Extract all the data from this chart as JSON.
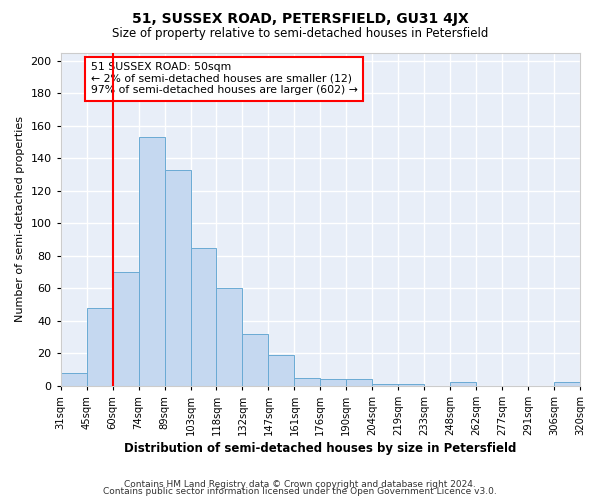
{
  "title1": "51, SUSSEX ROAD, PETERSFIELD, GU31 4JX",
  "title2": "Size of property relative to semi-detached houses in Petersfield",
  "xlabel": "Distribution of semi-detached houses by size in Petersfield",
  "ylabel": "Number of semi-detached properties",
  "bin_labels": [
    "31sqm",
    "45sqm",
    "60sqm",
    "74sqm",
    "89sqm",
    "103sqm",
    "118sqm",
    "132sqm",
    "147sqm",
    "161sqm",
    "176sqm",
    "190sqm",
    "204sqm",
    "219sqm",
    "233sqm",
    "248sqm",
    "262sqm",
    "277sqm",
    "291sqm",
    "306sqm",
    "320sqm"
  ],
  "bar_values": [
    8,
    48,
    70,
    153,
    133,
    85,
    60,
    32,
    19,
    5,
    4,
    4,
    1,
    1,
    0,
    2,
    0,
    0,
    0,
    2
  ],
  "bar_color": "#c5d8f0",
  "bar_edge_color": "#6aaad4",
  "red_line_x": 1.5,
  "annotation_text": "51 SUSSEX ROAD: 50sqm\n← 2% of semi-detached houses are smaller (12)\n97% of semi-detached houses are larger (602) →",
  "annotation_box_facecolor": "white",
  "annotation_box_edgecolor": "red",
  "ylim": [
    0,
    205
  ],
  "yticks": [
    0,
    20,
    40,
    60,
    80,
    100,
    120,
    140,
    160,
    180,
    200
  ],
  "footer1": "Contains HM Land Registry data © Crown copyright and database right 2024.",
  "footer2": "Contains public sector information licensed under the Open Government Licence v3.0.",
  "fig_bg_color": "#ffffff",
  "plot_bg_color": "#e8eef8"
}
